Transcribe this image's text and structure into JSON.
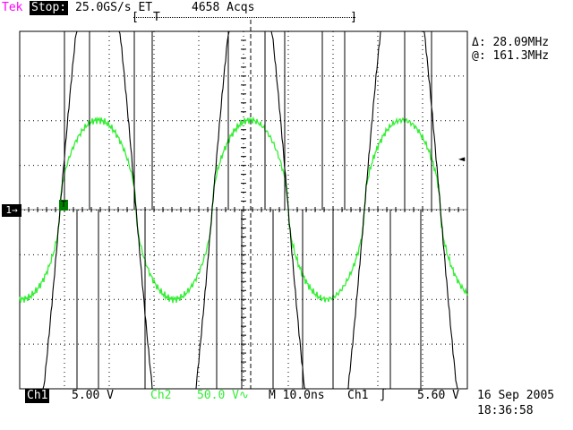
{
  "header": {
    "brand": "Tek",
    "run_state": "Stop:",
    "sample_rate": "25.0GS/s ET",
    "acquisitions": "4658 Acqs"
  },
  "trigger_bar": {
    "left_bracket": "[",
    "right_bracket": "]",
    "trigger_mark": "T"
  },
  "measurements": {
    "delta": "Δ: 28.09MHz",
    "at": "@: 161.3MHz"
  },
  "markers": {
    "ch1": "1→",
    "trigger_level": "◄",
    "trigger_point": "T"
  },
  "footer": {
    "ch1_label": "Ch1",
    "ch1_scale": "5.00 V",
    "ch2_label": "Ch2",
    "ch2_scale": "50.0 V∿",
    "timebase": "M 10.0ns",
    "trigger_source": "Ch1",
    "trigger_slope": "∫",
    "trigger_level": "5.60 V",
    "date": "16 Sep 2005",
    "time": "18:36:58"
  },
  "colors": {
    "brand": "#ff00ff",
    "ch1_trace": "#000000",
    "ch2_trace": "#33ee33",
    "graticule": "#000000"
  }
}
